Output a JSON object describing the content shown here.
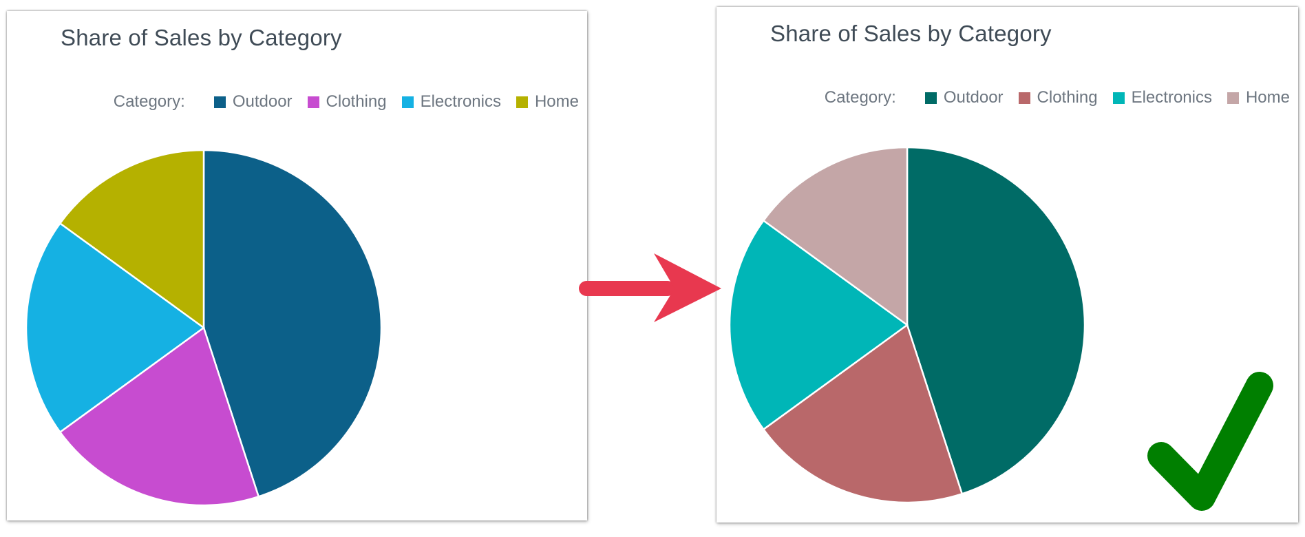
{
  "charts": [
    {
      "title": "Share of Sales by Category",
      "legend_heading": "Category:",
      "colors": [
        "#0c6089",
        "#c74cd0",
        "#15b1e3",
        "#b5b100"
      ]
    },
    {
      "title": "Share of Sales by Category",
      "legend_heading": "Category:",
      "colors": [
        "#006b66",
        "#b9686a",
        "#00b6b7",
        "#c4a6a7"
      ]
    }
  ],
  "chart_data": [
    {
      "type": "pie",
      "title": "Share of Sales by Category",
      "legend_title": "Category:",
      "legend_position": "top-right",
      "categories": [
        "Outdoor",
        "Clothing",
        "Electronics",
        "Home"
      ],
      "values": [
        45,
        20,
        20,
        15
      ],
      "colors": [
        "#0c6089",
        "#c74cd0",
        "#15b1e3",
        "#b5b100"
      ]
    },
    {
      "type": "pie",
      "title": "Share of Sales by Category",
      "legend_title": "Category:",
      "legend_position": "top-right",
      "categories": [
        "Outdoor",
        "Clothing",
        "Electronics",
        "Home"
      ],
      "values": [
        45,
        20,
        20,
        15
      ],
      "colors": [
        "#006b66",
        "#b9686a",
        "#00b6b7",
        "#c4a6a7"
      ]
    }
  ],
  "annotations": {
    "arrow_color": "#e8384f",
    "checkmark_color": "#007f00",
    "arrow_icon": "right-arrow-icon",
    "check_icon": "checkmark-icon"
  }
}
